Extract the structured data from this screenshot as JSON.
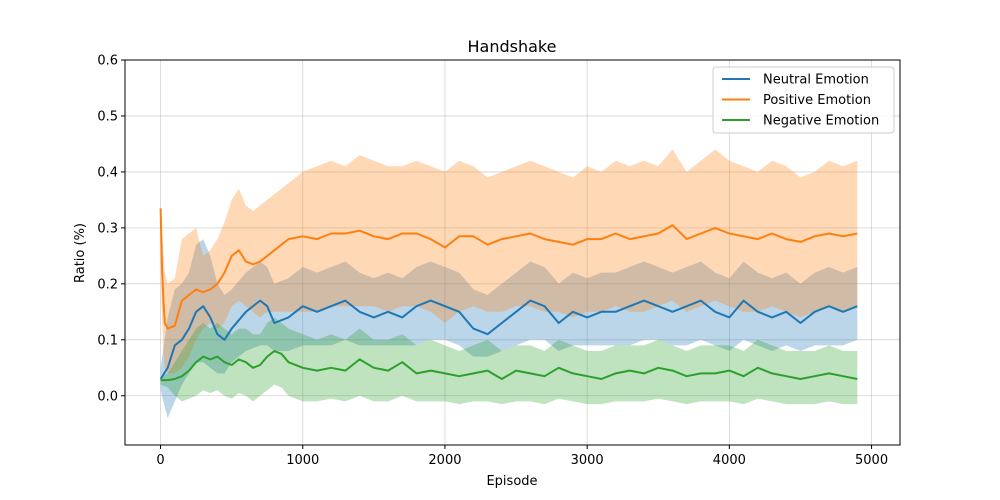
{
  "chart_data": {
    "type": "line",
    "title": "Handshake",
    "xlabel": "Episode",
    "ylabel": "Ratio (%)",
    "xlim": [
      -250,
      5200
    ],
    "ylim": [
      -0.088,
      0.6
    ],
    "xticks": [
      0,
      1000,
      2000,
      3000,
      4000,
      5000
    ],
    "xtick_labels": [
      "0",
      "1000",
      "2000",
      "3000",
      "4000",
      "5000"
    ],
    "yticks": [
      0.0,
      0.1,
      0.2,
      0.3,
      0.4,
      0.5,
      0.6
    ],
    "ytick_labels": [
      "0.0",
      "0.1",
      "0.2",
      "0.3",
      "0.4",
      "0.5",
      "0.6"
    ],
    "grid": true,
    "legend_position": "top-right",
    "series": [
      {
        "name": "Neutral Emotion",
        "color": "#1f77b4",
        "x": [
          0,
          50,
          100,
          150,
          200,
          250,
          300,
          350,
          400,
          450,
          500,
          600,
          700,
          750,
          800,
          900,
          1000,
          1100,
          1200,
          1300,
          1400,
          1500,
          1600,
          1700,
          1800,
          1900,
          2000,
          2100,
          2200,
          2300,
          2400,
          2500,
          2600,
          2700,
          2800,
          2900,
          3000,
          3100,
          3200,
          3300,
          3400,
          3500,
          3600,
          3700,
          3800,
          3900,
          4000,
          4100,
          4200,
          4300,
          4400,
          4500,
          4600,
          4700,
          4800,
          4900
        ],
        "mean": [
          0.03,
          0.05,
          0.09,
          0.1,
          0.12,
          0.15,
          0.16,
          0.14,
          0.11,
          0.1,
          0.12,
          0.15,
          0.17,
          0.16,
          0.13,
          0.14,
          0.16,
          0.15,
          0.16,
          0.17,
          0.15,
          0.14,
          0.15,
          0.14,
          0.16,
          0.17,
          0.16,
          0.15,
          0.12,
          0.11,
          0.13,
          0.15,
          0.17,
          0.16,
          0.13,
          0.15,
          0.14,
          0.15,
          0.15,
          0.16,
          0.17,
          0.16,
          0.15,
          0.16,
          0.17,
          0.15,
          0.14,
          0.17,
          0.15,
          0.14,
          0.15,
          0.13,
          0.15,
          0.16,
          0.15,
          0.16
        ],
        "lower": [
          0.01,
          -0.04,
          -0.01,
          0.02,
          0.04,
          0.06,
          0.06,
          0.05,
          0.04,
          0.04,
          0.06,
          0.08,
          0.09,
          0.09,
          0.08,
          0.08,
          0.09,
          0.09,
          0.09,
          0.1,
          0.09,
          0.09,
          0.09,
          0.09,
          0.09,
          0.1,
          0.1,
          0.09,
          0.07,
          0.07,
          0.08,
          0.09,
          0.1,
          0.1,
          0.08,
          0.09,
          0.09,
          0.09,
          0.09,
          0.09,
          0.1,
          0.1,
          0.09,
          0.09,
          0.1,
          0.09,
          0.08,
          0.1,
          0.09,
          0.08,
          0.09,
          0.08,
          0.09,
          0.09,
          0.09,
          0.1
        ],
        "upper": [
          0.05,
          0.14,
          0.19,
          0.2,
          0.22,
          0.27,
          0.28,
          0.25,
          0.2,
          0.18,
          0.19,
          0.22,
          0.24,
          0.23,
          0.2,
          0.21,
          0.23,
          0.22,
          0.23,
          0.24,
          0.22,
          0.21,
          0.22,
          0.21,
          0.23,
          0.24,
          0.23,
          0.22,
          0.19,
          0.18,
          0.2,
          0.22,
          0.24,
          0.23,
          0.2,
          0.22,
          0.21,
          0.22,
          0.22,
          0.23,
          0.24,
          0.23,
          0.22,
          0.23,
          0.24,
          0.22,
          0.21,
          0.24,
          0.22,
          0.21,
          0.22,
          0.2,
          0.22,
          0.23,
          0.22,
          0.23
        ]
      },
      {
        "name": "Positive Emotion",
        "color": "#ff7f0e",
        "x": [
          0,
          10,
          20,
          30,
          50,
          100,
          150,
          200,
          250,
          300,
          350,
          400,
          450,
          500,
          550,
          600,
          650,
          700,
          750,
          800,
          900,
          1000,
          1100,
          1200,
          1300,
          1400,
          1500,
          1600,
          1700,
          1800,
          1900,
          2000,
          2100,
          2200,
          2300,
          2400,
          2500,
          2600,
          2700,
          2800,
          2900,
          3000,
          3100,
          3200,
          3300,
          3400,
          3500,
          3600,
          3700,
          3800,
          3900,
          4000,
          4100,
          4200,
          4300,
          4400,
          4500,
          4600,
          4700,
          4800,
          4900
        ],
        "mean": [
          0.335,
          0.23,
          0.17,
          0.13,
          0.12,
          0.125,
          0.17,
          0.18,
          0.19,
          0.185,
          0.19,
          0.2,
          0.22,
          0.25,
          0.26,
          0.24,
          0.235,
          0.24,
          0.25,
          0.26,
          0.28,
          0.285,
          0.28,
          0.29,
          0.29,
          0.295,
          0.285,
          0.28,
          0.29,
          0.29,
          0.28,
          0.265,
          0.285,
          0.285,
          0.27,
          0.28,
          0.285,
          0.29,
          0.28,
          0.275,
          0.27,
          0.28,
          0.28,
          0.29,
          0.28,
          0.285,
          0.29,
          0.305,
          0.28,
          0.29,
          0.3,
          0.29,
          0.285,
          0.28,
          0.29,
          0.28,
          0.275,
          0.285,
          0.29,
          0.285,
          0.29
        ],
        "lower": [
          0.25,
          0.14,
          0.08,
          0.05,
          0.04,
          0.04,
          0.05,
          0.07,
          0.1,
          0.12,
          0.13,
          0.12,
          0.13,
          0.16,
          0.17,
          0.16,
          0.15,
          0.14,
          0.15,
          0.15,
          0.15,
          0.15,
          0.15,
          0.16,
          0.16,
          0.16,
          0.16,
          0.15,
          0.16,
          0.16,
          0.15,
          0.13,
          0.15,
          0.16,
          0.15,
          0.15,
          0.16,
          0.16,
          0.15,
          0.15,
          0.14,
          0.15,
          0.15,
          0.16,
          0.15,
          0.15,
          0.16,
          0.17,
          0.15,
          0.16,
          0.17,
          0.16,
          0.15,
          0.15,
          0.16,
          0.15,
          0.14,
          0.15,
          0.16,
          0.15,
          0.16
        ],
        "upper": [
          0.34,
          0.3,
          0.26,
          0.22,
          0.2,
          0.21,
          0.28,
          0.29,
          0.3,
          0.25,
          0.26,
          0.28,
          0.31,
          0.35,
          0.37,
          0.34,
          0.33,
          0.34,
          0.35,
          0.36,
          0.38,
          0.4,
          0.41,
          0.42,
          0.41,
          0.43,
          0.42,
          0.41,
          0.41,
          0.42,
          0.41,
          0.4,
          0.42,
          0.41,
          0.39,
          0.4,
          0.41,
          0.42,
          0.41,
          0.4,
          0.39,
          0.41,
          0.4,
          0.42,
          0.41,
          0.42,
          0.41,
          0.44,
          0.4,
          0.42,
          0.44,
          0.42,
          0.41,
          0.4,
          0.42,
          0.41,
          0.39,
          0.4,
          0.42,
          0.41,
          0.42
        ]
      },
      {
        "name": "Negative Emotion",
        "color": "#2ca02c",
        "x": [
          0,
          50,
          100,
          150,
          200,
          250,
          300,
          350,
          400,
          450,
          500,
          550,
          600,
          650,
          700,
          750,
          800,
          850,
          900,
          1000,
          1100,
          1200,
          1300,
          1400,
          1500,
          1600,
          1700,
          1800,
          1900,
          2000,
          2100,
          2200,
          2300,
          2400,
          2500,
          2600,
          2700,
          2800,
          2900,
          3000,
          3100,
          3200,
          3300,
          3400,
          3500,
          3600,
          3700,
          3800,
          3900,
          4000,
          4100,
          4200,
          4300,
          4400,
          4500,
          4600,
          4700,
          4800,
          4900
        ],
        "mean": [
          0.028,
          0.028,
          0.03,
          0.035,
          0.045,
          0.06,
          0.07,
          0.065,
          0.07,
          0.06,
          0.055,
          0.065,
          0.06,
          0.05,
          0.055,
          0.07,
          0.08,
          0.075,
          0.06,
          0.05,
          0.045,
          0.05,
          0.045,
          0.065,
          0.05,
          0.045,
          0.06,
          0.04,
          0.045,
          0.04,
          0.035,
          0.04,
          0.045,
          0.03,
          0.045,
          0.04,
          0.035,
          0.05,
          0.04,
          0.035,
          0.03,
          0.04,
          0.045,
          0.04,
          0.05,
          0.045,
          0.035,
          0.04,
          0.04,
          0.045,
          0.035,
          0.05,
          0.04,
          0.035,
          0.03,
          0.035,
          0.04,
          0.035,
          0.03
        ],
        "lower": [
          0.02,
          0.015,
          0.0,
          -0.01,
          -0.005,
          0.0,
          0.01,
          0.005,
          0.01,
          0.0,
          -0.005,
          0.005,
          0.0,
          -0.01,
          0.0,
          0.01,
          0.02,
          0.015,
          0.0,
          -0.01,
          -0.01,
          -0.005,
          -0.01,
          0.0,
          -0.01,
          -0.01,
          0.0,
          -0.01,
          -0.01,
          -0.01,
          -0.015,
          -0.01,
          -0.01,
          -0.015,
          -0.01,
          -0.01,
          -0.015,
          -0.005,
          -0.01,
          -0.015,
          -0.015,
          -0.01,
          -0.01,
          -0.01,
          -0.005,
          -0.01,
          -0.015,
          -0.01,
          -0.01,
          -0.01,
          -0.015,
          -0.005,
          -0.01,
          -0.015,
          -0.015,
          -0.015,
          -0.01,
          -0.015,
          -0.015
        ],
        "upper": [
          0.035,
          0.04,
          0.06,
          0.08,
          0.1,
          0.12,
          0.13,
          0.12,
          0.13,
          0.12,
          0.11,
          0.12,
          0.12,
          0.11,
          0.11,
          0.13,
          0.14,
          0.13,
          0.12,
          0.11,
          0.1,
          0.11,
          0.1,
          0.12,
          0.1,
          0.1,
          0.11,
          0.09,
          0.1,
          0.09,
          0.08,
          0.09,
          0.1,
          0.08,
          0.09,
          0.09,
          0.08,
          0.1,
          0.09,
          0.08,
          0.08,
          0.09,
          0.09,
          0.09,
          0.1,
          0.09,
          0.08,
          0.09,
          0.09,
          0.09,
          0.08,
          0.1,
          0.09,
          0.08,
          0.08,
          0.08,
          0.09,
          0.08,
          0.08
        ]
      }
    ]
  }
}
